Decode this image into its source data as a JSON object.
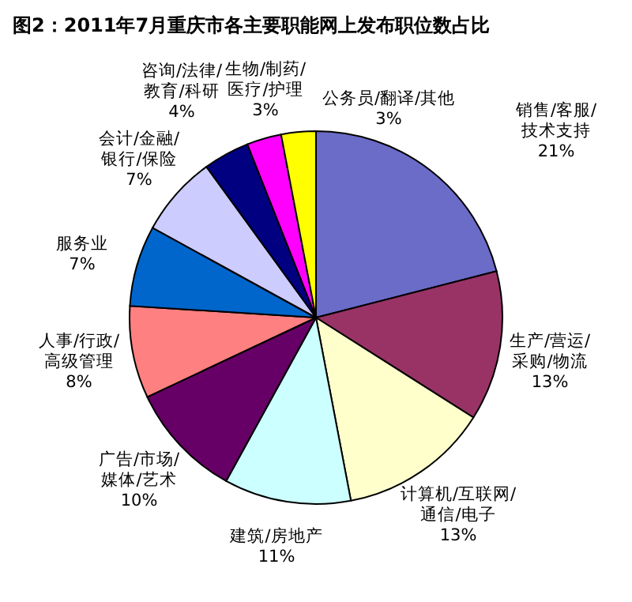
{
  "chart_data": {
    "type": "pie",
    "title": "图2：2011年7月重庆市各主要职能网上发布职位数占比",
    "categories": [
      "销售/客服/技术支持",
      "生产/营运/采购/物流",
      "计算机/互联网/通信/电子",
      "建筑/房地产",
      "广告/市场/媒体/艺术",
      "人事/行政/高级管理",
      "服务业",
      "会计/金融/银行/保险",
      "咨询/法律/教育/科研",
      "生物/制药/医疗/护理",
      "公务员/翻译/其他"
    ],
    "values": [
      21,
      13,
      13,
      11,
      10,
      8,
      7,
      7,
      4,
      3,
      3
    ],
    "colors": [
      "#6b6bc8",
      "#993366",
      "#ffffcc",
      "#ccffff",
      "#660066",
      "#ff8080",
      "#0066cc",
      "#ccccff",
      "#000080",
      "#ff00ff",
      "#ffff00"
    ],
    "value_labels": [
      "21%",
      "13%",
      "13%",
      "11%",
      "10%",
      "8%",
      "7%",
      "7%",
      "4%",
      "3%",
      "3%"
    ]
  }
}
